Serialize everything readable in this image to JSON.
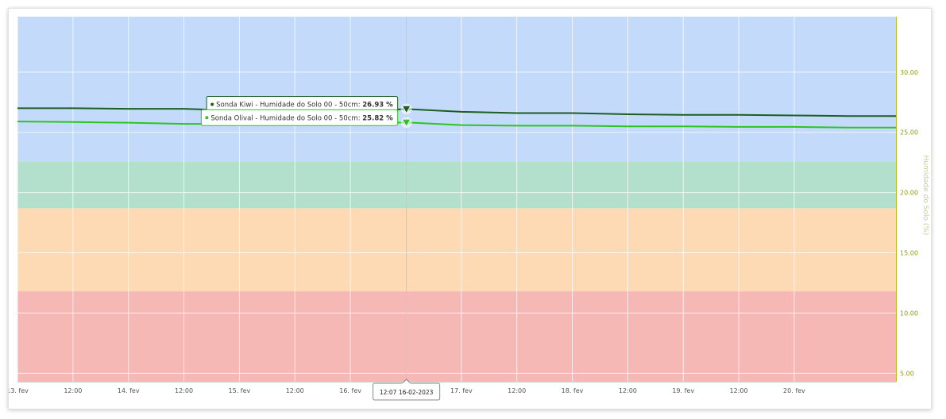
{
  "chart_data": {
    "type": "line",
    "title": "",
    "xlabel": "",
    "ylabel": "Humidade do Solo (%)",
    "ylim": [
      4.3,
      34.6
    ],
    "xlim": [
      "2023-02-13T00:00",
      "2023-02-20T22:00"
    ],
    "y_ticks": [
      "5.00",
      "10.00",
      "15.00",
      "20.00",
      "25.00",
      "30.00"
    ],
    "x_ticks": [
      {
        "t": "2023-02-13T00:00",
        "label": "13. fev"
      },
      {
        "t": "2023-02-13T12:00",
        "label": "12:00"
      },
      {
        "t": "2023-02-14T00:00",
        "label": "14. fev"
      },
      {
        "t": "2023-02-14T12:00",
        "label": "12:00"
      },
      {
        "t": "2023-02-15T00:00",
        "label": "15. fev"
      },
      {
        "t": "2023-02-15T12:00",
        "label": "12:00"
      },
      {
        "t": "2023-02-16T00:00",
        "label": "16. fev"
      },
      {
        "t": "2023-02-17T00:00",
        "label": "17. fev"
      },
      {
        "t": "2023-02-17T12:00",
        "label": "12:00"
      },
      {
        "t": "2023-02-18T00:00",
        "label": "18. fev"
      },
      {
        "t": "2023-02-18T12:00",
        "label": "12:00"
      },
      {
        "t": "2023-02-19T00:00",
        "label": "19. fev"
      },
      {
        "t": "2023-02-19T12:00",
        "label": "12:00"
      },
      {
        "t": "2023-02-20T00:00",
        "label": "20. fev"
      }
    ],
    "bands": [
      {
        "from": 22.6,
        "to": 34.6,
        "color": "#c3dafa"
      },
      {
        "from": 18.7,
        "to": 22.6,
        "color": "#b3e0cc"
      },
      {
        "from": 11.8,
        "to": 18.7,
        "color": "#fdd9b4"
      },
      {
        "from": 4.3,
        "to": 11.8,
        "color": "#f6b8b5"
      }
    ],
    "series": [
      {
        "name": "Sonda Kiwi - Humidade do Solo 00 - 50cm",
        "color": "#1b5e20",
        "x": [
          "2023-02-13T00:00",
          "2023-02-13T12:00",
          "2023-02-14T00:00",
          "2023-02-14T12:00",
          "2023-02-15T00:00",
          "2023-02-15T12:00",
          "2023-02-16T00:00",
          "2023-02-16T12:07",
          "2023-02-17T00:00",
          "2023-02-17T12:00",
          "2023-02-18T00:00",
          "2023-02-18T12:00",
          "2023-02-19T00:00",
          "2023-02-19T12:00",
          "2023-02-20T00:00",
          "2023-02-20T12:00",
          "2023-02-20T22:00"
        ],
        "y": [
          27.0,
          27.0,
          26.95,
          26.95,
          26.8,
          26.8,
          26.75,
          26.93,
          26.7,
          26.6,
          26.6,
          26.5,
          26.45,
          26.45,
          26.4,
          26.35,
          26.35
        ]
      },
      {
        "name": "Sonda Olival - Humidade do Solo 00 - 50cm",
        "color": "#2ec41f",
        "x": [
          "2023-02-13T00:00",
          "2023-02-13T12:00",
          "2023-02-14T00:00",
          "2023-02-14T12:00",
          "2023-02-15T00:00",
          "2023-02-15T12:00",
          "2023-02-16T00:00",
          "2023-02-16T12:07",
          "2023-02-17T00:00",
          "2023-02-17T12:00",
          "2023-02-18T00:00",
          "2023-02-18T12:00",
          "2023-02-19T00:00",
          "2023-02-19T12:00",
          "2023-02-20T00:00",
          "2023-02-20T12:00",
          "2023-02-20T22:00"
        ],
        "y": [
          25.9,
          25.85,
          25.8,
          25.7,
          25.7,
          25.75,
          25.75,
          25.82,
          25.6,
          25.55,
          25.55,
          25.5,
          25.5,
          25.45,
          25.45,
          25.4,
          25.4
        ]
      }
    ],
    "crosshair": {
      "t": "2023-02-16T12:07",
      "label": "12:07 16-02-2023"
    },
    "tooltips": [
      {
        "series": "Sonda Kiwi - Humidade do Solo 00 - 50cm",
        "text": "Sonda Kiwi - Humidade do Solo 00 - 50cm: ",
        "value": "26.93 %"
      },
      {
        "series": "Sonda Olival - Humidade do Solo 00 - 50cm",
        "text": "Sonda Olival - Humidade do Solo 00 - 50cm: ",
        "value": "25.82 %"
      }
    ],
    "grid": true,
    "legend": "none"
  }
}
